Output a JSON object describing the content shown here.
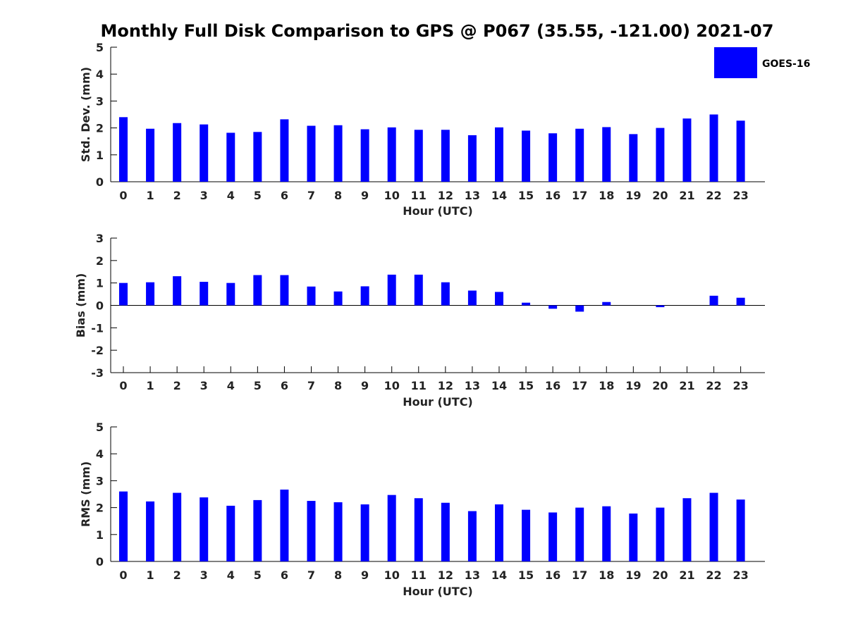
{
  "figure": {
    "title": "Monthly Full Disk Comparison to GPS @ P067 (35.55, -121.00) 2021-07"
  },
  "legend": {
    "label": "GOES-16",
    "color": "#0000ff"
  },
  "chart_data": [
    {
      "type": "bar",
      "panel": "std-dev",
      "xlabel": "Hour (UTC)",
      "ylabel": "Std. Dev. (mm)",
      "categories": [
        "0",
        "1",
        "2",
        "3",
        "4",
        "5",
        "6",
        "7",
        "8",
        "9",
        "10",
        "11",
        "12",
        "13",
        "14",
        "15",
        "16",
        "17",
        "18",
        "19",
        "20",
        "21",
        "22",
        "23"
      ],
      "series": [
        {
          "name": "GOES-16",
          "color": "#0000ff",
          "values": [
            2.4,
            1.97,
            2.18,
            2.13,
            1.82,
            1.85,
            2.32,
            2.08,
            2.1,
            1.95,
            2.02,
            1.93,
            1.93,
            1.73,
            2.02,
            1.9,
            1.8,
            1.97,
            2.03,
            1.77,
            2.0,
            2.35,
            2.5,
            2.27
          ]
        }
      ],
      "ylim": [
        0,
        5
      ],
      "yticks": [
        0,
        1,
        2,
        3,
        4,
        5
      ],
      "grid": false,
      "legend": "top-right"
    },
    {
      "type": "bar",
      "panel": "bias",
      "xlabel": "Hour (UTC)",
      "ylabel": "Bias (mm)",
      "categories": [
        "0",
        "1",
        "2",
        "3",
        "4",
        "5",
        "6",
        "7",
        "8",
        "9",
        "10",
        "11",
        "12",
        "13",
        "14",
        "15",
        "16",
        "17",
        "18",
        "19",
        "20",
        "21",
        "22",
        "23"
      ],
      "series": [
        {
          "name": "GOES-16",
          "color": "#0000ff",
          "values": [
            1.0,
            1.03,
            1.3,
            1.05,
            1.0,
            1.35,
            1.35,
            0.84,
            0.62,
            0.85,
            1.37,
            1.37,
            1.03,
            0.66,
            0.6,
            0.12,
            -0.15,
            -0.28,
            0.15,
            0.0,
            -0.08,
            0.0,
            0.43,
            0.34
          ]
        }
      ],
      "ylim": [
        -3,
        3
      ],
      "yticks": [
        -3,
        -2,
        -1,
        0,
        1,
        2,
        3
      ],
      "zero_line": true,
      "grid": false
    },
    {
      "type": "bar",
      "panel": "rms",
      "xlabel": "Hour (UTC)",
      "ylabel": "RMS (mm)",
      "categories": [
        "0",
        "1",
        "2",
        "3",
        "4",
        "5",
        "6",
        "7",
        "8",
        "9",
        "10",
        "11",
        "12",
        "13",
        "14",
        "15",
        "16",
        "17",
        "18",
        "19",
        "20",
        "21",
        "22",
        "23"
      ],
      "series": [
        {
          "name": "GOES-16",
          "color": "#0000ff",
          "values": [
            2.6,
            2.23,
            2.55,
            2.38,
            2.07,
            2.28,
            2.67,
            2.25,
            2.2,
            2.12,
            2.47,
            2.35,
            2.18,
            1.87,
            2.12,
            1.92,
            1.82,
            2.0,
            2.05,
            1.78,
            2.0,
            2.35,
            2.55,
            2.3
          ]
        }
      ],
      "ylim": [
        0,
        5
      ],
      "yticks": [
        0,
        1,
        2,
        3,
        4,
        5
      ],
      "grid": false
    }
  ]
}
